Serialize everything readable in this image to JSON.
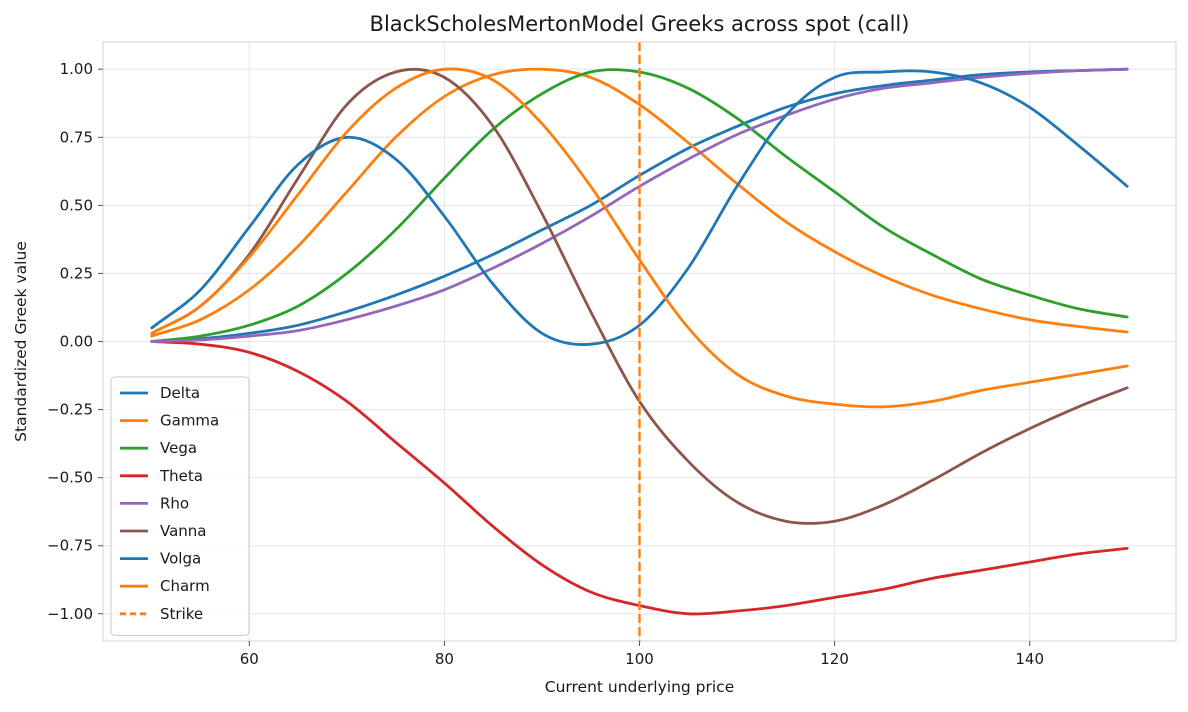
{
  "chart_data": {
    "type": "line",
    "title": "BlackScholesMertonModel Greeks across spot (call)",
    "xlabel": "Current underlying price",
    "ylabel": "Standardized Greek value",
    "xlim": [
      45,
      155
    ],
    "ylim": [
      -1.1,
      1.1
    ],
    "x_ticks": [
      60,
      80,
      100,
      120,
      140
    ],
    "x_tick_labels": [
      "60",
      "80",
      "100",
      "120",
      "140"
    ],
    "y_ticks": [
      1.0,
      0.75,
      0.5,
      0.25,
      0.0,
      -0.25,
      -0.5,
      -0.75,
      -1.0
    ],
    "y_tick_labels": [
      "1.00",
      "0.75",
      "0.50",
      "0.25",
      "0.00",
      "−0.25",
      "−0.50",
      "−0.75",
      "−1.00"
    ],
    "grid": true,
    "legend_position": "lower-left",
    "x": [
      50,
      55,
      60,
      65,
      70,
      75,
      80,
      85,
      90,
      95,
      100,
      105,
      110,
      115,
      120,
      125,
      130,
      135,
      140,
      145,
      150
    ],
    "series": [
      {
        "name": "Delta",
        "color": "#1f77b4",
        "style": "solid",
        "values": [
          0.0,
          0.01,
          0.03,
          0.06,
          0.11,
          0.17,
          0.24,
          0.32,
          0.41,
          0.5,
          0.61,
          0.71,
          0.79,
          0.86,
          0.91,
          0.94,
          0.96,
          0.98,
          0.99,
          0.995,
          1.0
        ]
      },
      {
        "name": "Gamma",
        "color": "#ff7f0e",
        "style": "solid",
        "values": [
          0.02,
          0.08,
          0.19,
          0.35,
          0.55,
          0.75,
          0.9,
          0.98,
          1.0,
          0.97,
          0.87,
          0.73,
          0.58,
          0.44,
          0.33,
          0.24,
          0.17,
          0.12,
          0.08,
          0.055,
          0.035
        ]
      },
      {
        "name": "Vega",
        "color": "#2ca02c",
        "style": "solid",
        "values": [
          0.0,
          0.02,
          0.06,
          0.13,
          0.25,
          0.41,
          0.6,
          0.78,
          0.91,
          0.99,
          0.99,
          0.93,
          0.82,
          0.68,
          0.55,
          0.42,
          0.32,
          0.23,
          0.17,
          0.12,
          0.09
        ]
      },
      {
        "name": "Theta",
        "color": "#d62728",
        "style": "solid",
        "values": [
          0.0,
          -0.01,
          -0.04,
          -0.11,
          -0.22,
          -0.37,
          -0.52,
          -0.68,
          -0.82,
          -0.92,
          -0.97,
          -1.0,
          -0.99,
          -0.97,
          -0.94,
          -0.91,
          -0.87,
          -0.84,
          -0.81,
          -0.78,
          -0.76
        ]
      },
      {
        "name": "Rho",
        "color": "#9467bd",
        "style": "solid",
        "values": [
          0.0,
          0.006,
          0.02,
          0.04,
          0.08,
          0.13,
          0.19,
          0.27,
          0.36,
          0.46,
          0.57,
          0.67,
          0.76,
          0.83,
          0.89,
          0.93,
          0.95,
          0.97,
          0.985,
          0.995,
          1.0
        ]
      },
      {
        "name": "Vanna",
        "color": "#8c564b",
        "style": "solid",
        "values": [
          0.03,
          0.13,
          0.32,
          0.6,
          0.87,
          0.99,
          0.97,
          0.79,
          0.47,
          0.11,
          -0.22,
          -0.44,
          -0.59,
          -0.66,
          -0.66,
          -0.6,
          -0.51,
          -0.41,
          -0.32,
          -0.24,
          -0.17
        ]
      },
      {
        "name": "Volga",
        "color": "#1f77b4",
        "style": "solid",
        "values": [
          0.05,
          0.19,
          0.42,
          0.65,
          0.75,
          0.67,
          0.46,
          0.21,
          0.03,
          -0.01,
          0.06,
          0.27,
          0.57,
          0.83,
          0.97,
          0.99,
          0.99,
          0.95,
          0.86,
          0.72,
          0.57
        ]
      },
      {
        "name": "Charm",
        "color": "#ff7f0e",
        "style": "solid",
        "values": [
          0.03,
          0.13,
          0.31,
          0.54,
          0.77,
          0.93,
          1.0,
          0.96,
          0.8,
          0.57,
          0.3,
          0.05,
          -0.12,
          -0.2,
          -0.23,
          -0.24,
          -0.22,
          -0.18,
          -0.15,
          -0.12,
          -0.09
        ]
      }
    ],
    "vlines": [
      {
        "name": "Strike",
        "x": 100,
        "color": "#ff7f0e",
        "style": "dashed"
      }
    ]
  }
}
